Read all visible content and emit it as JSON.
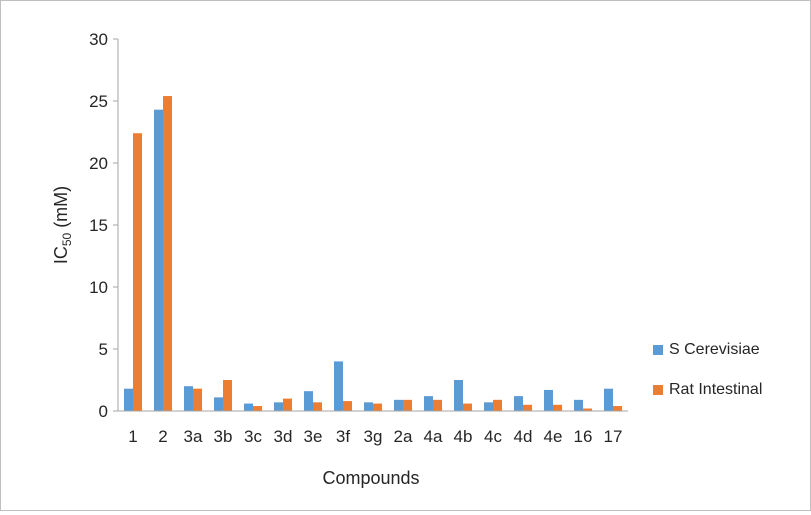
{
  "chart_data": {
    "type": "bar",
    "xlabel": "Compounds",
    "ylabel_main": "IC",
    "ylabel_sub": "50",
    "ylabel_unit": " (mM)",
    "ylim": [
      0,
      30
    ],
    "yticks": [
      0,
      5,
      10,
      15,
      20,
      25,
      30
    ],
    "grid": false,
    "legend_position": "right",
    "categories": [
      "1",
      "2",
      "3a",
      "3b",
      "3c",
      "3d",
      "3e",
      "3f",
      "3g",
      "2a",
      "4a",
      "4b",
      "4c",
      "4d",
      "4e",
      "16",
      "17"
    ],
    "series": [
      {
        "name": "S Cerevisiae",
        "color": "#5b9bd5",
        "values": [
          1.8,
          24.3,
          2.0,
          1.1,
          0.6,
          0.7,
          1.6,
          4.0,
          0.7,
          0.9,
          1.2,
          2.5,
          0.7,
          1.2,
          1.7,
          0.9,
          1.8
        ]
      },
      {
        "name": "Rat Intestinal",
        "color": "#ed7d31",
        "values": [
          22.4,
          25.4,
          1.8,
          2.5,
          0.4,
          1.0,
          0.7,
          0.8,
          0.6,
          0.9,
          0.9,
          0.6,
          0.9,
          0.5,
          0.5,
          0.2,
          0.4
        ]
      }
    ]
  }
}
